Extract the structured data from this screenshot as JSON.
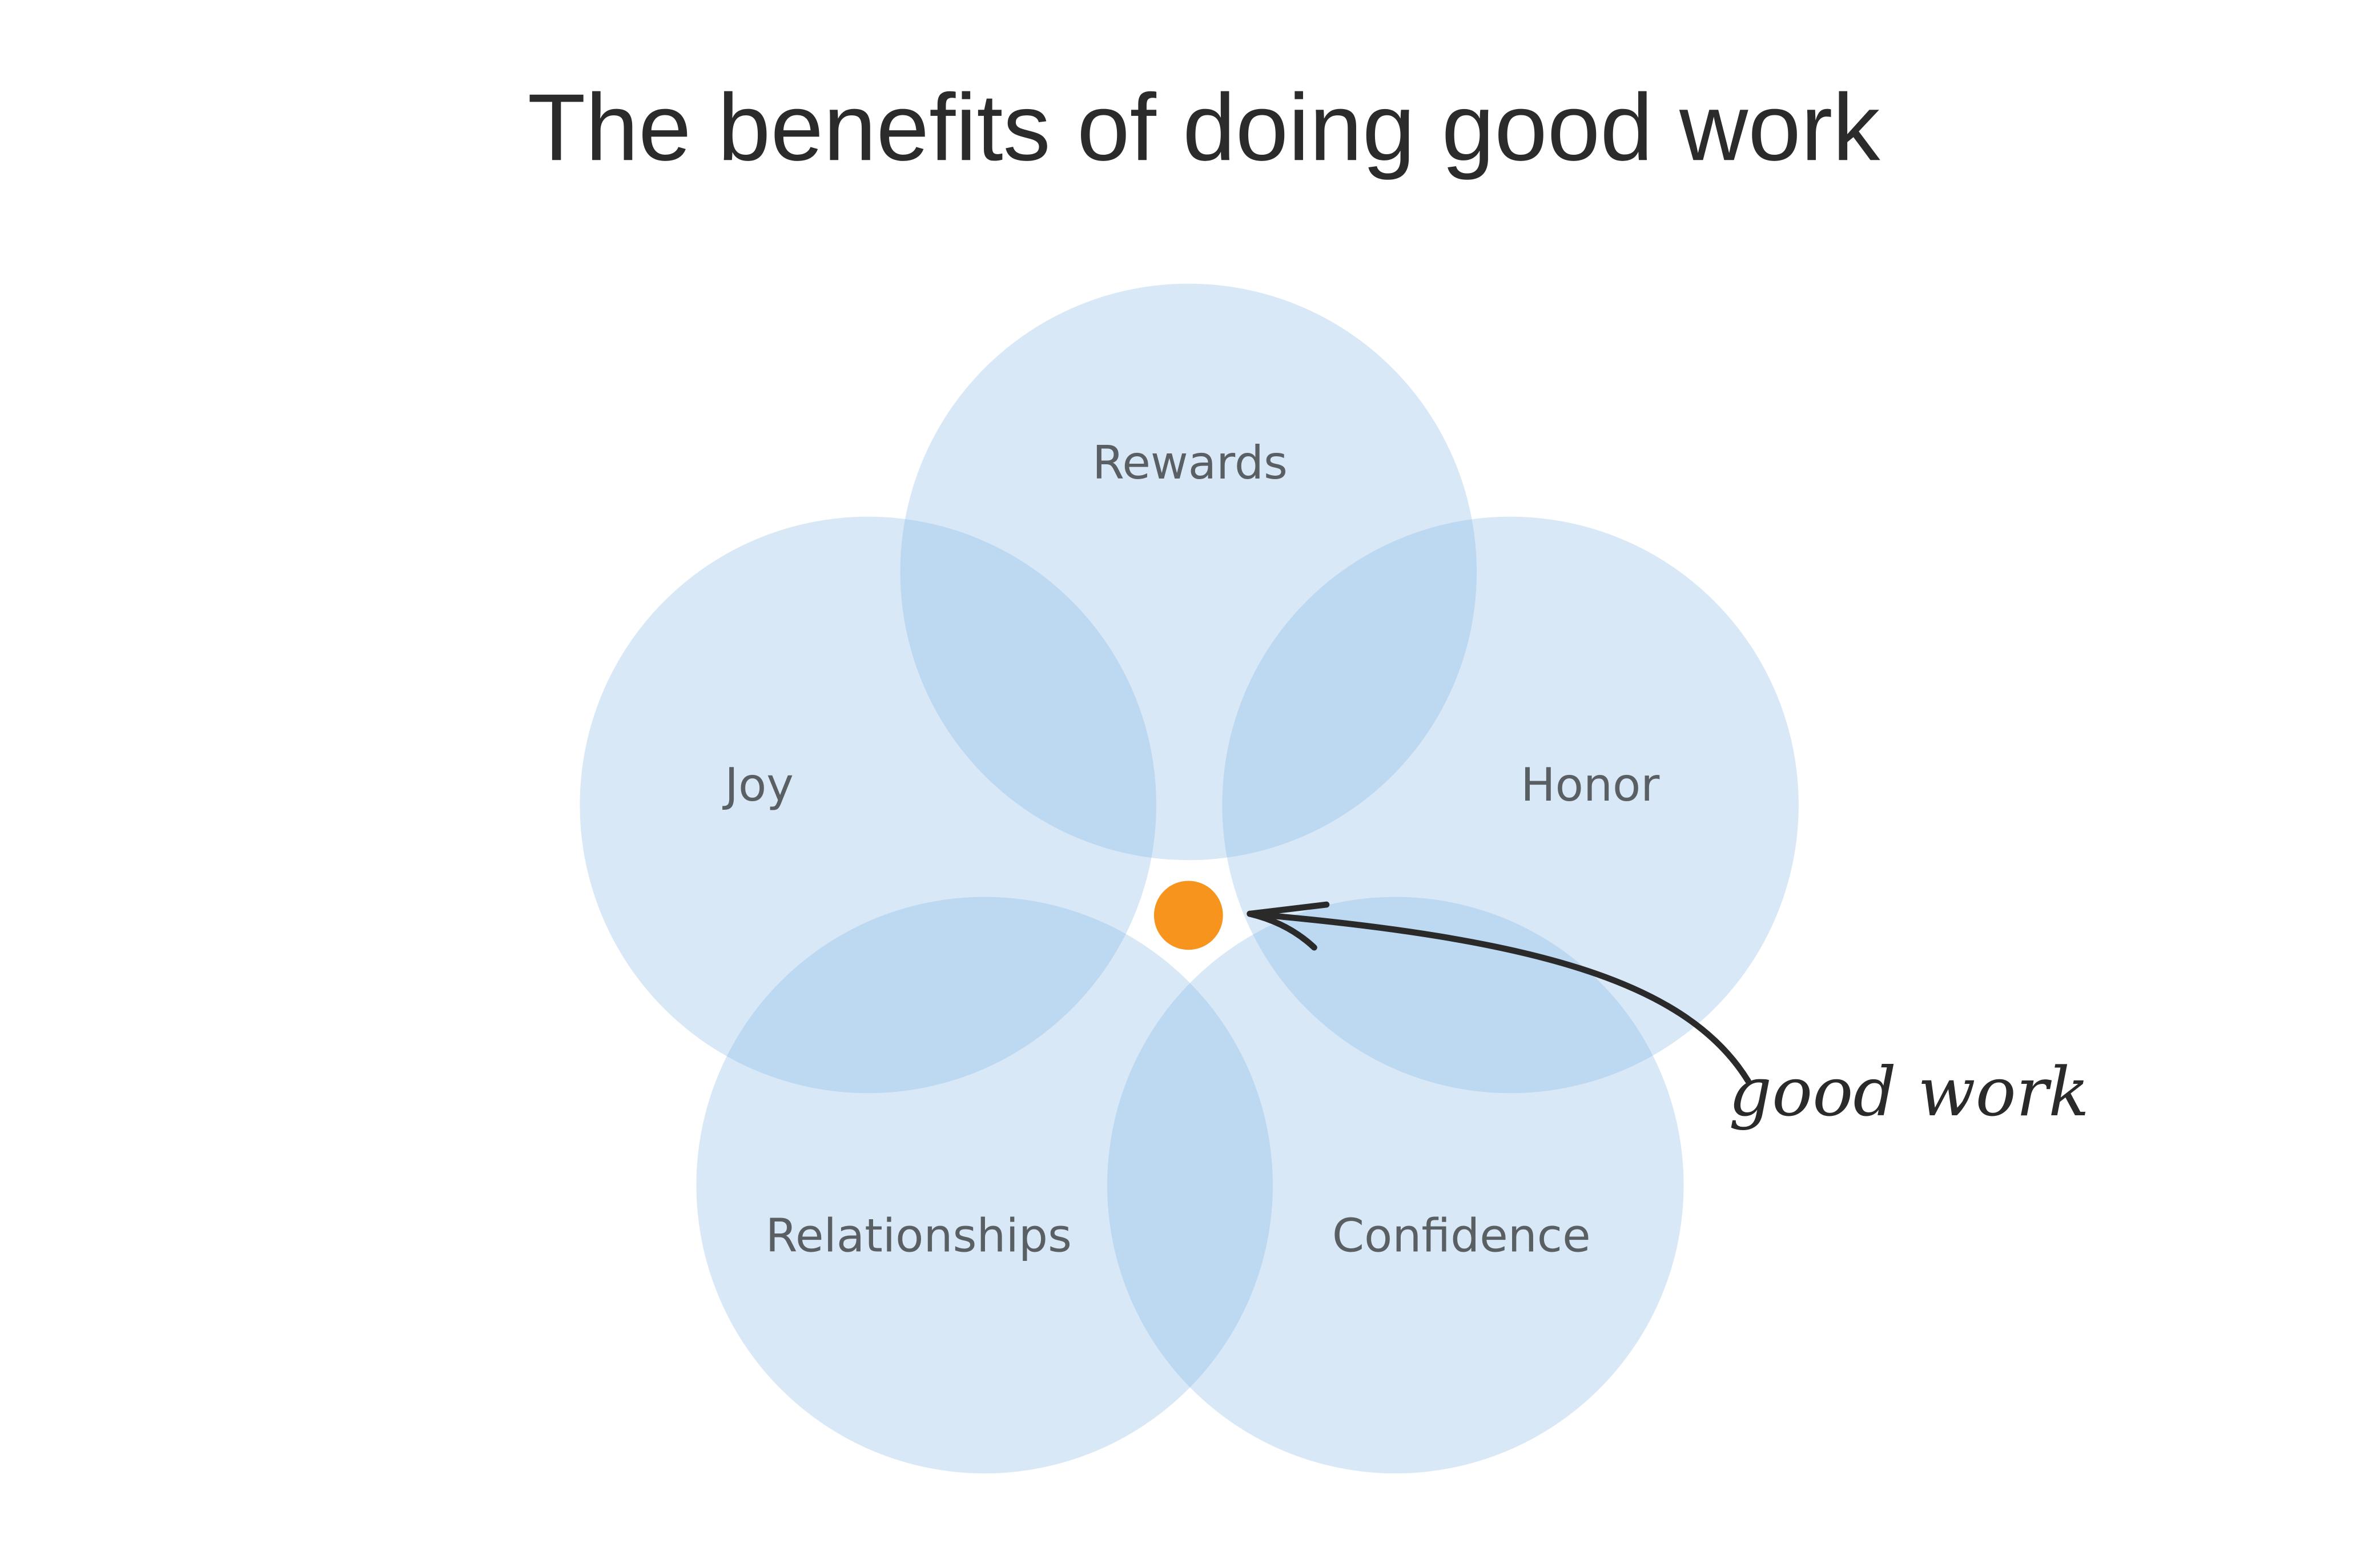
{
  "header": {
    "title": "The benefits of doing good work"
  },
  "nodes": [
    {
      "label": "Rewards"
    },
    {
      "label": "Joy"
    },
    {
      "label": "Honor"
    },
    {
      "label": "Relationships"
    },
    {
      "label": "Confidence"
    }
  ],
  "annotation": {
    "label": "good work"
  }
}
